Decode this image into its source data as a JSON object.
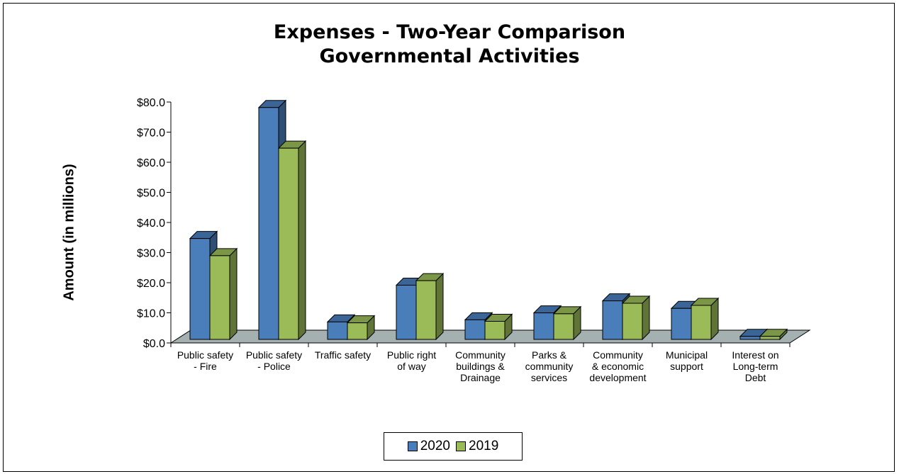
{
  "chart_data": {
    "type": "bar",
    "title": "Expenses - Two-Year Comparison",
    "subtitle": "Governmental Activities",
    "ylabel": "Amount  (in millions)",
    "xlabel": "",
    "ylim": [
      0,
      80
    ],
    "yticks": [
      "$0.0",
      "$10.0",
      "$20.0",
      "$30.0",
      "$40.0",
      "$50.0",
      "$60.0",
      "$70.0",
      "$80.0"
    ],
    "categories": [
      [
        "Public safety",
        "- Fire"
      ],
      [
        "Public safety",
        "- Police"
      ],
      [
        "Traffic safety"
      ],
      [
        "Public right",
        "of way"
      ],
      [
        "Community",
        "buildings &",
        "Drainage"
      ],
      [
        "Parks &",
        "community",
        "services"
      ],
      [
        "Community",
        "& economic",
        "development"
      ],
      [
        "Municipal",
        "support"
      ],
      [
        "Interest on",
        "Long-term",
        "Debt"
      ]
    ],
    "series": [
      {
        "name": "2020",
        "color": "#4a7ebb",
        "values": [
          33.5,
          77.0,
          5.8,
          18.0,
          6.5,
          8.8,
          12.8,
          10.3,
          1.0
        ]
      },
      {
        "name": "2019",
        "color": "#9bbb59",
        "values": [
          27.8,
          63.5,
          5.5,
          19.5,
          6.0,
          8.5,
          12.0,
          11.3,
          1.0
        ]
      }
    ],
    "legend_position": "bottom",
    "grid": false
  }
}
